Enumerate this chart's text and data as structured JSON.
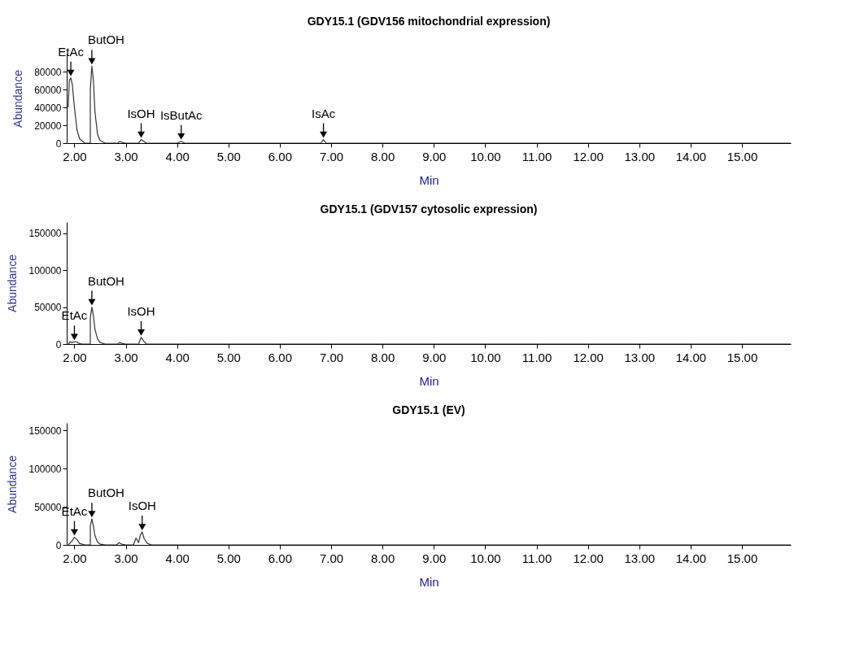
{
  "chart_data": [
    {
      "type": "line",
      "title": "GDY15.1 (GDV156 mitochondrial expression)",
      "xlabel": "Min",
      "ylabel": "Abundance",
      "xlim": [
        1.85,
        15.95
      ],
      "ylim": [
        0,
        100000
      ],
      "yticks": [
        0,
        20000,
        40000,
        60000,
        80000
      ],
      "xticks": [
        {
          "value": 2,
          "label": "2.00"
        },
        {
          "value": 3,
          "label": "3.00"
        },
        {
          "value": 4,
          "label": "4.00"
        },
        {
          "value": 5,
          "label": "5.00"
        },
        {
          "value": 6,
          "label": "6.00"
        },
        {
          "value": 7,
          "label": "7.00"
        },
        {
          "value": 8,
          "label": "8.00"
        },
        {
          "value": 9,
          "label": "9.00"
        },
        {
          "value": 10,
          "label": "10.00"
        },
        {
          "value": 11,
          "label": "11.00"
        },
        {
          "value": 12,
          "label": "12.00"
        },
        {
          "value": 13,
          "label": "13.00"
        },
        {
          "value": 14,
          "label": "14.00"
        },
        {
          "value": 15,
          "label": "15.00"
        }
      ],
      "grid": false,
      "marker": "none",
      "line_style": "solid",
      "series": [
        {
          "color": "#333333",
          "x": [
            1.88,
            1.9,
            1.93,
            1.96,
            2.0,
            2.05,
            2.1,
            2.2,
            2.31,
            2.31,
            2.34,
            2.37,
            2.4,
            2.45,
            2.5,
            2.6,
            2.85,
            2.88,
            2.92,
            3.0,
            3.25,
            3.3,
            3.35,
            3.4,
            4.0,
            4.08,
            4.15,
            6.8,
            6.85,
            6.9,
            15.95
          ],
          "values": [
            40000,
            70000,
            73000,
            65000,
            40000,
            15000,
            5000,
            0,
            0,
            60000,
            86000,
            70000,
            35000,
            10000,
            3000,
            0,
            0,
            2000,
            1000,
            0,
            0,
            4000,
            2000,
            0,
            0,
            2000,
            0,
            0,
            4000,
            0,
            0
          ]
        }
      ],
      "annotations": [
        {
          "text": "EtAc",
          "x": 1.93,
          "y": 73000
        },
        {
          "text": "ButOH",
          "x": 2.34,
          "y": 86000
        },
        {
          "text": "IsOH",
          "x": 3.3,
          "y": 4000
        },
        {
          "text": "IsButAc",
          "x": 4.08,
          "y": 2000
        },
        {
          "text": "IsAc",
          "x": 6.85,
          "y": 4000
        }
      ]
    },
    {
      "type": "line",
      "title": "GDY15.1 (GDV157 cytosolic expression)",
      "xlabel": "Min",
      "ylabel": "Abundance",
      "xlim": [
        1.85,
        15.95
      ],
      "ylim": [
        0,
        165000
      ],
      "yticks": [
        0,
        50000,
        100000,
        150000
      ],
      "xticks": [
        {
          "value": 2,
          "label": "2.00"
        },
        {
          "value": 3,
          "label": "3.00"
        },
        {
          "value": 4,
          "label": "4.00"
        },
        {
          "value": 5,
          "label": "5.00"
        },
        {
          "value": 6,
          "label": "6.00"
        },
        {
          "value": 7,
          "label": "7.00"
        },
        {
          "value": 8,
          "label": "8.00"
        },
        {
          "value": 9,
          "label": "9.00"
        },
        {
          "value": 10,
          "label": "10.00"
        },
        {
          "value": 11,
          "label": "11.00"
        },
        {
          "value": 12,
          "label": "12.00"
        },
        {
          "value": 13,
          "label": "13.00"
        },
        {
          "value": 14,
          "label": "14.00"
        },
        {
          "value": 15,
          "label": "15.00"
        }
      ],
      "grid": false,
      "marker": "none",
      "line_style": "solid",
      "series": [
        {
          "color": "#333333",
          "x": [
            1.88,
            1.92,
            1.96,
            2.0,
            2.04,
            2.08,
            2.15,
            2.31,
            2.31,
            2.34,
            2.37,
            2.4,
            2.45,
            2.5,
            2.6,
            2.85,
            2.88,
            2.92,
            3.0,
            3.25,
            3.3,
            3.35,
            3.4,
            15.95
          ],
          "values": [
            0,
            3000,
            2000,
            3000,
            3000,
            1000,
            0,
            0,
            35000,
            50000,
            38000,
            20000,
            7000,
            2000,
            0,
            0,
            2000,
            1000,
            0,
            0,
            9000,
            4000,
            0,
            0
          ]
        }
      ],
      "annotations": [
        {
          "text": "EtAc",
          "x": 2.0,
          "y": 3000
        },
        {
          "text": "ButOH",
          "x": 2.34,
          "y": 50000
        },
        {
          "text": "IsOH",
          "x": 3.3,
          "y": 9000
        }
      ]
    },
    {
      "type": "line",
      "title": "GDY15.1 (EV)",
      "xlabel": "Min",
      "ylabel": "Abundance",
      "xlim": [
        1.85,
        15.95
      ],
      "ylim": [
        0,
        160000
      ],
      "yticks": [
        0,
        50000,
        100000,
        150000
      ],
      "xticks": [
        {
          "value": 2,
          "label": "2.00"
        },
        {
          "value": 3,
          "label": "3.00"
        },
        {
          "value": 4,
          "label": "4.00"
        },
        {
          "value": 5,
          "label": "5.00"
        },
        {
          "value": 6,
          "label": "6.00"
        },
        {
          "value": 7,
          "label": "7.00"
        },
        {
          "value": 8,
          "label": "8.00"
        },
        {
          "value": 9,
          "label": "9.00"
        },
        {
          "value": 10,
          "label": "10.00"
        },
        {
          "value": 11,
          "label": "11.00"
        },
        {
          "value": 12,
          "label": "12.00"
        },
        {
          "value": 13,
          "label": "13.00"
        },
        {
          "value": 14,
          "label": "14.00"
        },
        {
          "value": 15,
          "label": "15.00"
        }
      ],
      "grid": false,
      "marker": "none",
      "line_style": "solid",
      "series": [
        {
          "color": "#333333",
          "x": [
            1.88,
            1.95,
            2.0,
            2.05,
            2.1,
            2.2,
            2.31,
            2.31,
            2.34,
            2.37,
            2.4,
            2.45,
            2.5,
            2.6,
            2.82,
            2.87,
            2.92,
            3.0,
            3.15,
            3.2,
            3.25,
            3.28,
            3.32,
            3.36,
            3.42,
            3.5,
            15.95
          ],
          "values": [
            0,
            5000,
            10000,
            7000,
            2000,
            0,
            0,
            25000,
            34000,
            25000,
            12000,
            4000,
            1000,
            0,
            0,
            3000,
            1000,
            0,
            0,
            9000,
            3000,
            12000,
            17000,
            8000,
            2000,
            0,
            0
          ]
        }
      ],
      "annotations": [
        {
          "text": "EtAc",
          "x": 2.0,
          "y": 10000
        },
        {
          "text": "ButOH",
          "x": 2.34,
          "y": 34000
        },
        {
          "text": "IsOH",
          "x": 3.32,
          "y": 17000
        }
      ]
    }
  ]
}
